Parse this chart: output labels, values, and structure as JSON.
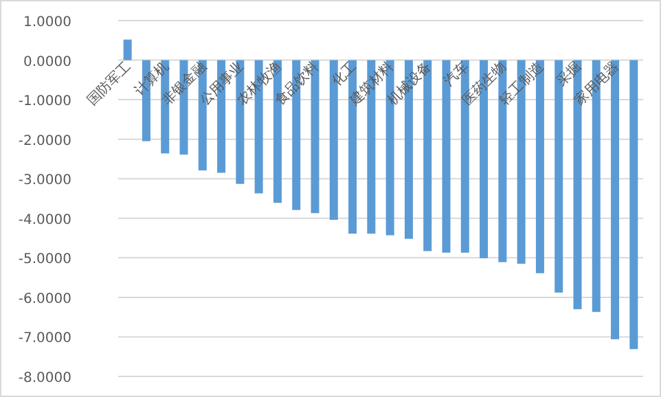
{
  "chart_data": {
    "type": "bar",
    "categories": [
      "国防军工",
      null,
      "计算机",
      null,
      "非银金融",
      null,
      "公用事业",
      null,
      "农林牧渔",
      null,
      "食品饮料",
      null,
      "化工",
      null,
      "建筑材料",
      null,
      "机械设备",
      null,
      "汽车",
      null,
      "医药生物",
      null,
      "轻工制造",
      null,
      "采掘",
      null,
      "家用电器",
      null
    ],
    "values": [
      0.52,
      -2.05,
      -2.36,
      -2.39,
      -2.79,
      -2.85,
      -3.13,
      -3.37,
      -3.61,
      -3.79,
      -3.87,
      -4.04,
      -4.39,
      -4.39,
      -4.43,
      -4.52,
      -4.83,
      -4.87,
      -4.87,
      -5.01,
      -5.11,
      -5.15,
      -5.39,
      -5.88,
      -6.3,
      -6.37,
      -7.06,
      -7.31
    ],
    "color": "#5b9bd5",
    "ylim": [
      -8,
      1
    ],
    "yticks": [
      {
        "value": 1,
        "label": "1.0000"
      },
      {
        "value": 0,
        "label": "0.0000"
      },
      {
        "value": -1,
        "label": "-1.0000"
      },
      {
        "value": -2,
        "label": "-2.0000"
      },
      {
        "value": -3,
        "label": "-3.0000"
      },
      {
        "value": -4,
        "label": "-4.0000"
      },
      {
        "value": -5,
        "label": "-5.0000"
      },
      {
        "value": -6,
        "label": "-6.0000"
      },
      {
        "value": -7,
        "label": "-7.0000"
      },
      {
        "value": -8,
        "label": "-8.0000"
      }
    ],
    "grid": "y"
  }
}
